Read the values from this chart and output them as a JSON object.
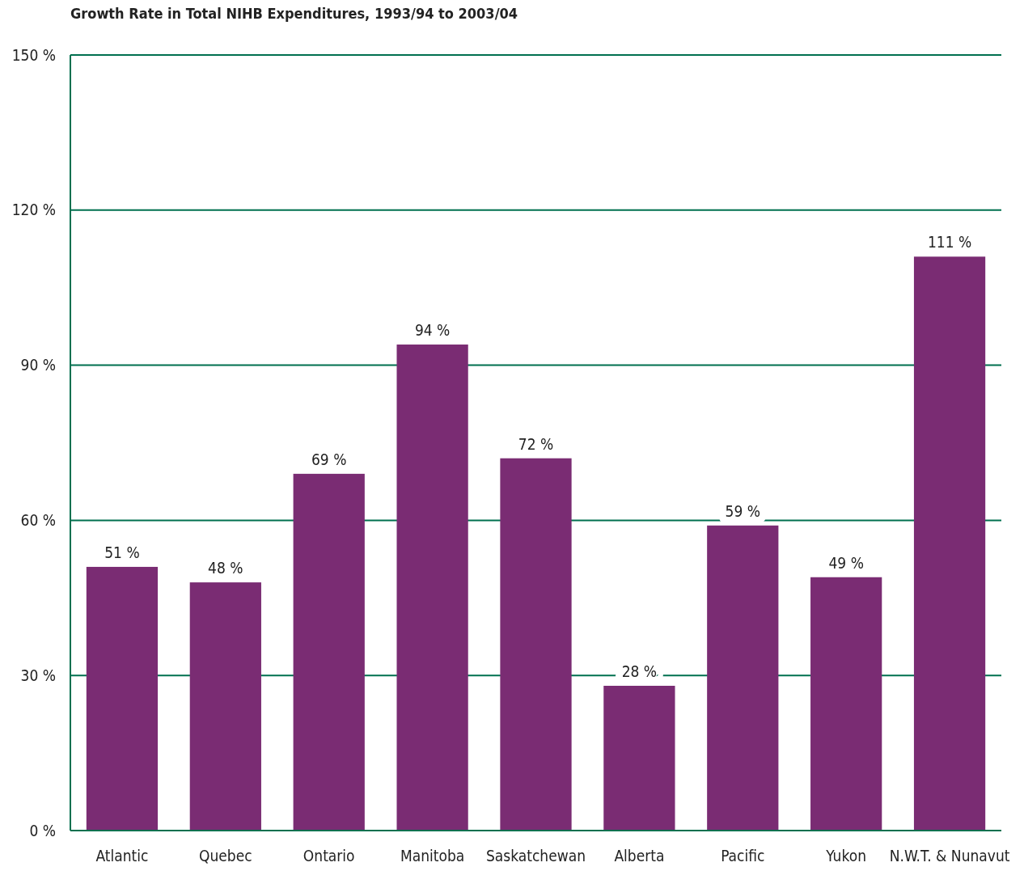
{
  "chart_data": {
    "type": "bar",
    "title": "Growth Rate in Total NIHB Expenditures, 1993/94 to 2003/04",
    "categories": [
      "Atlantic",
      "Quebec",
      "Ontario",
      "Manitoba",
      "Saskatchewan",
      "Alberta",
      "Pacific",
      "Yukon",
      "N.W.T. & Nunavut"
    ],
    "values": [
      51,
      48,
      69,
      94,
      72,
      28,
      59,
      49,
      111
    ],
    "value_labels": [
      "51 %",
      "48 %",
      "69 %",
      "94 %",
      "72 %",
      "28 %",
      "59 %",
      "49 %",
      "111 %"
    ],
    "color": "#7a2c73",
    "ylim": [
      0,
      150
    ],
    "yticks": [
      {
        "value": 0,
        "label": "0 %"
      },
      {
        "value": 30,
        "label": "30 %"
      },
      {
        "value": 60,
        "label": "60 %"
      },
      {
        "value": 90,
        "label": "90 %"
      },
      {
        "value": 120,
        "label": "120 %"
      },
      {
        "value": 150,
        "label": "150 %"
      }
    ],
    "grid": "y"
  }
}
